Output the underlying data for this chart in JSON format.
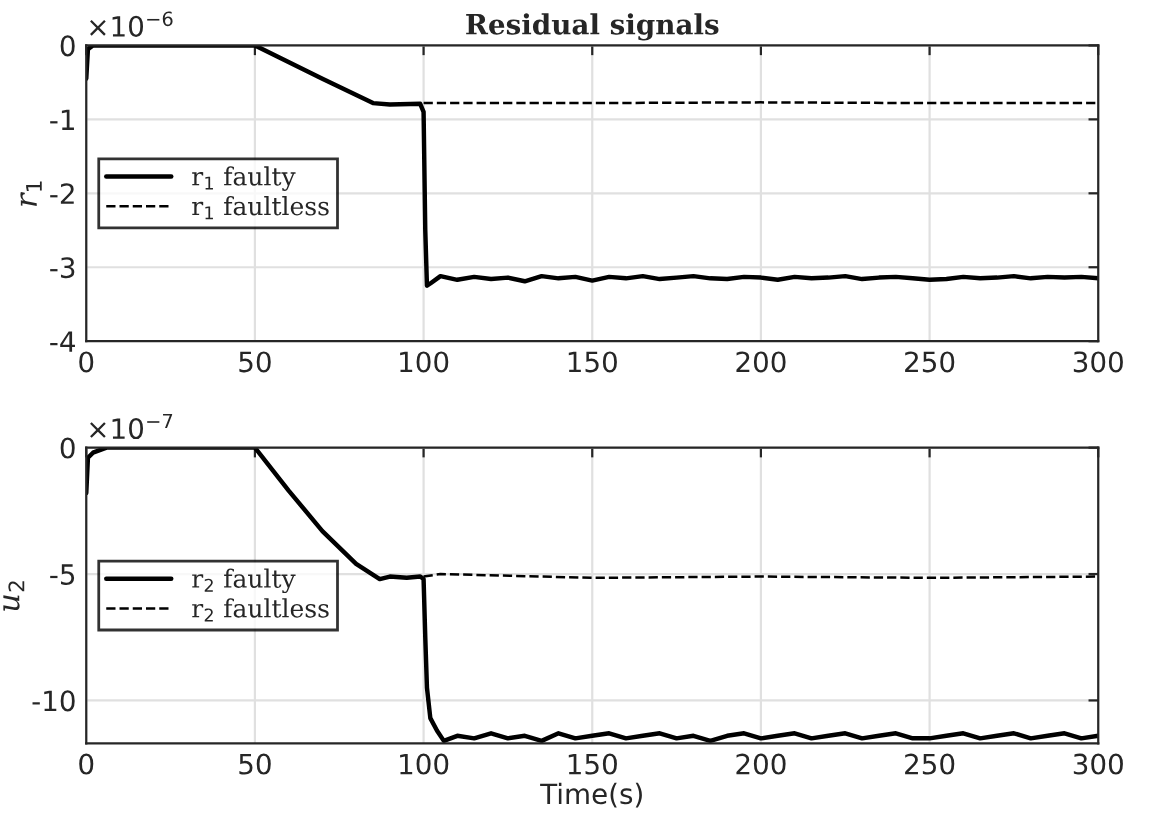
{
  "chart_data": [
    {
      "type": "line",
      "title": "Residual signals",
      "ylabel": "r$_{1}$",
      "annotations": [
        "×10$^{−6}$"
      ],
      "xlim": [
        0,
        300
      ],
      "ylim": [
        -4,
        0
      ],
      "xticks": [
        0,
        50,
        100,
        150,
        200,
        250,
        300
      ],
      "yticks": [
        -4,
        -3,
        -2,
        -1,
        0
      ],
      "grid": true,
      "legend": "left",
      "series": [
        {
          "name": "r$_{1}$ faulty",
          "color": "#000000",
          "line_style": "solid",
          "x": [
            0,
            0.5,
            2,
            50,
            70,
            85,
            90,
            99,
            100,
            100.5,
            101,
            102,
            105,
            110,
            115,
            120,
            125,
            130,
            135,
            140,
            145,
            150,
            155,
            160,
            165,
            170,
            175,
            180,
            185,
            190,
            195,
            200,
            205,
            210,
            215,
            220,
            225,
            230,
            235,
            240,
            245,
            250,
            255,
            260,
            265,
            270,
            275,
            280,
            285,
            290,
            295,
            300
          ],
          "values": [
            -0.45,
            -0.05,
            0,
            0,
            -0.45,
            -0.78,
            -0.8,
            -0.79,
            -0.9,
            -2.5,
            -3.25,
            -3.22,
            -3.12,
            -3.17,
            -3.13,
            -3.16,
            -3.14,
            -3.19,
            -3.12,
            -3.15,
            -3.13,
            -3.18,
            -3.13,
            -3.15,
            -3.12,
            -3.16,
            -3.14,
            -3.12,
            -3.15,
            -3.16,
            -3.13,
            -3.14,
            -3.17,
            -3.13,
            -3.15,
            -3.14,
            -3.12,
            -3.16,
            -3.14,
            -3.13,
            -3.15,
            -3.17,
            -3.16,
            -3.13,
            -3.15,
            -3.14,
            -3.12,
            -3.15,
            -3.13,
            -3.14,
            -3.13,
            -3.15
          ]
        },
        {
          "name": "r$_{1}$ faultless",
          "color": "#000000",
          "line_style": "dashed",
          "x": [
            100,
            150,
            200,
            250,
            300
          ],
          "values": [
            -0.78,
            -0.78,
            -0.77,
            -0.78,
            -0.78
          ]
        }
      ]
    },
    {
      "type": "line",
      "xlabel": "Time(s)",
      "ylabel": "u$_{2}$",
      "annotations": [
        "×10$^{−7}$"
      ],
      "xlim": [
        0,
        300
      ],
      "ylim": [
        -11.7,
        0
      ],
      "xticks": [
        0,
        50,
        100,
        150,
        200,
        250,
        300
      ],
      "yticks": [
        -10,
        -5,
        0
      ],
      "grid": true,
      "legend": "left",
      "series": [
        {
          "name": "r$_{2}$ faulty",
          "color": "#000000",
          "line_style": "solid",
          "x": [
            0,
            0.5,
            2,
            6,
            50,
            60,
            70,
            80,
            87,
            90,
            95,
            99,
            100,
            100.5,
            101,
            102,
            104,
            106,
            110,
            115,
            120,
            125,
            130,
            135,
            140,
            145,
            150,
            155,
            160,
            165,
            170,
            175,
            180,
            185,
            190,
            195,
            200,
            205,
            210,
            215,
            220,
            225,
            230,
            235,
            240,
            245,
            250,
            255,
            260,
            265,
            270,
            275,
            280,
            285,
            290,
            295,
            300
          ],
          "values": [
            -1.8,
            -0.4,
            -0.2,
            0,
            0,
            -1.7,
            -3.3,
            -4.6,
            -5.2,
            -5.1,
            -5.15,
            -5.1,
            -5.2,
            -7.5,
            -9.5,
            -10.7,
            -11.2,
            -11.6,
            -11.4,
            -11.5,
            -11.3,
            -11.5,
            -11.4,
            -11.6,
            -11.3,
            -11.5,
            -11.4,
            -11.3,
            -11.5,
            -11.4,
            -11.3,
            -11.5,
            -11.4,
            -11.6,
            -11.4,
            -11.3,
            -11.5,
            -11.4,
            -11.3,
            -11.5,
            -11.4,
            -11.3,
            -11.5,
            -11.4,
            -11.3,
            -11.5,
            -11.5,
            -11.4,
            -11.3,
            -11.5,
            -11.4,
            -11.3,
            -11.5,
            -11.4,
            -11.3,
            -11.5,
            -11.4
          ]
        },
        {
          "name": "r$_{2}$ faultless",
          "color": "#000000",
          "line_style": "dashed",
          "x": [
            100,
            105,
            150,
            200,
            250,
            300
          ],
          "values": [
            -5.1,
            -5.0,
            -5.15,
            -5.1,
            -5.15,
            -5.1
          ]
        }
      ]
    }
  ]
}
